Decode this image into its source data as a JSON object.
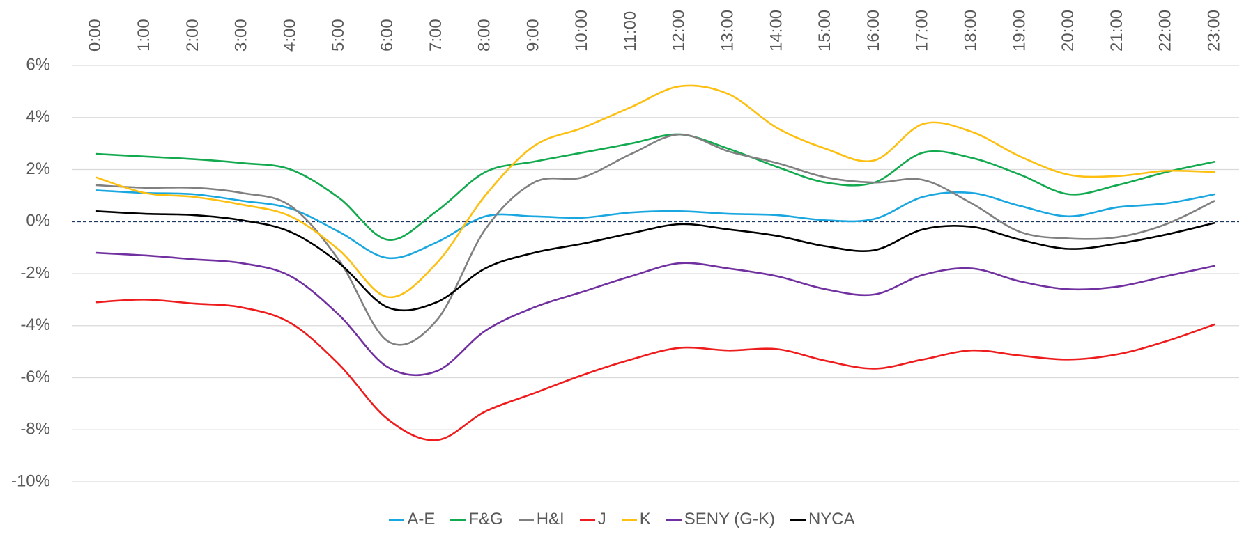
{
  "chart_data": {
    "type": "line",
    "categories": [
      "0:00",
      "1:00",
      "2:00",
      "3:00",
      "4:00",
      "5:00",
      "6:00",
      "7:00",
      "8:00",
      "9:00",
      "10:00",
      "11:00",
      "12:00",
      "13:00",
      "14:00",
      "15:00",
      "16:00",
      "17:00",
      "18:00",
      "19:00",
      "20:00",
      "21:00",
      "22:00",
      "23:00"
    ],
    "series": [
      {
        "name": "A-E",
        "color": "#1aa7e0",
        "values": [
          1.2,
          1.1,
          1.05,
          0.8,
          0.5,
          -0.4,
          -1.4,
          -0.8,
          0.2,
          0.2,
          0.15,
          0.35,
          0.4,
          0.3,
          0.25,
          0.05,
          0.1,
          0.95,
          1.1,
          0.6,
          0.2,
          0.55,
          0.7,
          1.05
        ]
      },
      {
        "name": "F&G",
        "color": "#12a94f",
        "values": [
          2.6,
          2.5,
          2.4,
          2.25,
          2.0,
          0.9,
          -0.7,
          0.4,
          1.9,
          2.3,
          2.65,
          3.0,
          3.35,
          2.8,
          2.1,
          1.5,
          1.5,
          2.65,
          2.45,
          1.8,
          1.05,
          1.4,
          1.9,
          2.3
        ]
      },
      {
        "name": "H&I",
        "color": "#808080",
        "values": [
          1.4,
          1.3,
          1.3,
          1.1,
          0.6,
          -1.5,
          -4.6,
          -3.8,
          -0.3,
          1.5,
          1.7,
          2.6,
          3.35,
          2.7,
          2.25,
          1.7,
          1.5,
          1.6,
          0.7,
          -0.4,
          -0.65,
          -0.6,
          -0.1,
          0.8
        ]
      },
      {
        "name": "J",
        "color": "#ee1c1c",
        "values": [
          -3.1,
          -3.0,
          -3.15,
          -3.3,
          -3.9,
          -5.5,
          -7.6,
          -8.4,
          -7.3,
          -6.6,
          -5.9,
          -5.3,
          -4.85,
          -4.95,
          -4.9,
          -5.35,
          -5.65,
          -5.3,
          -4.95,
          -5.15,
          -5.3,
          -5.1,
          -4.6,
          -3.95
        ]
      },
      {
        "name": "K",
        "color": "#fdbf10",
        "values": [
          1.7,
          1.1,
          0.95,
          0.65,
          0.2,
          -1.1,
          -2.9,
          -1.6,
          1.0,
          2.9,
          3.6,
          4.4,
          5.2,
          4.9,
          3.6,
          2.8,
          2.35,
          3.75,
          3.45,
          2.5,
          1.8,
          1.75,
          1.95,
          1.9
        ]
      },
      {
        "name": "SENY (G-K)",
        "color": "#7030a0",
        "values": [
          -1.2,
          -1.3,
          -1.45,
          -1.6,
          -2.1,
          -3.6,
          -5.6,
          -5.75,
          -4.2,
          -3.3,
          -2.7,
          -2.1,
          -1.6,
          -1.8,
          -2.1,
          -2.6,
          -2.8,
          -2.05,
          -1.8,
          -2.3,
          -2.6,
          -2.5,
          -2.1,
          -1.7
        ]
      },
      {
        "name": "NYCA",
        "color": "#000000",
        "values": [
          0.4,
          0.3,
          0.25,
          0.05,
          -0.4,
          -1.6,
          -3.3,
          -3.1,
          -1.8,
          -1.2,
          -0.85,
          -0.45,
          -0.1,
          -0.3,
          -0.55,
          -0.95,
          -1.1,
          -0.3,
          -0.2,
          -0.7,
          -1.05,
          -0.85,
          -0.5,
          -0.05
        ]
      }
    ],
    "ylim": [
      -10,
      6
    ],
    "yticks": [
      {
        "value": -10,
        "label": "-10%"
      },
      {
        "value": -8,
        "label": "-8%"
      },
      {
        "value": -6,
        "label": "-6%"
      },
      {
        "value": -4,
        "label": "-4%"
      },
      {
        "value": -2,
        "label": "-2%"
      },
      {
        "value": 0,
        "label": "0%"
      },
      {
        "value": 2,
        "label": "2%"
      },
      {
        "value": 4,
        "label": "4%"
      },
      {
        "value": 6,
        "label": "6%"
      }
    ],
    "grid": true,
    "legend": "bottom"
  }
}
